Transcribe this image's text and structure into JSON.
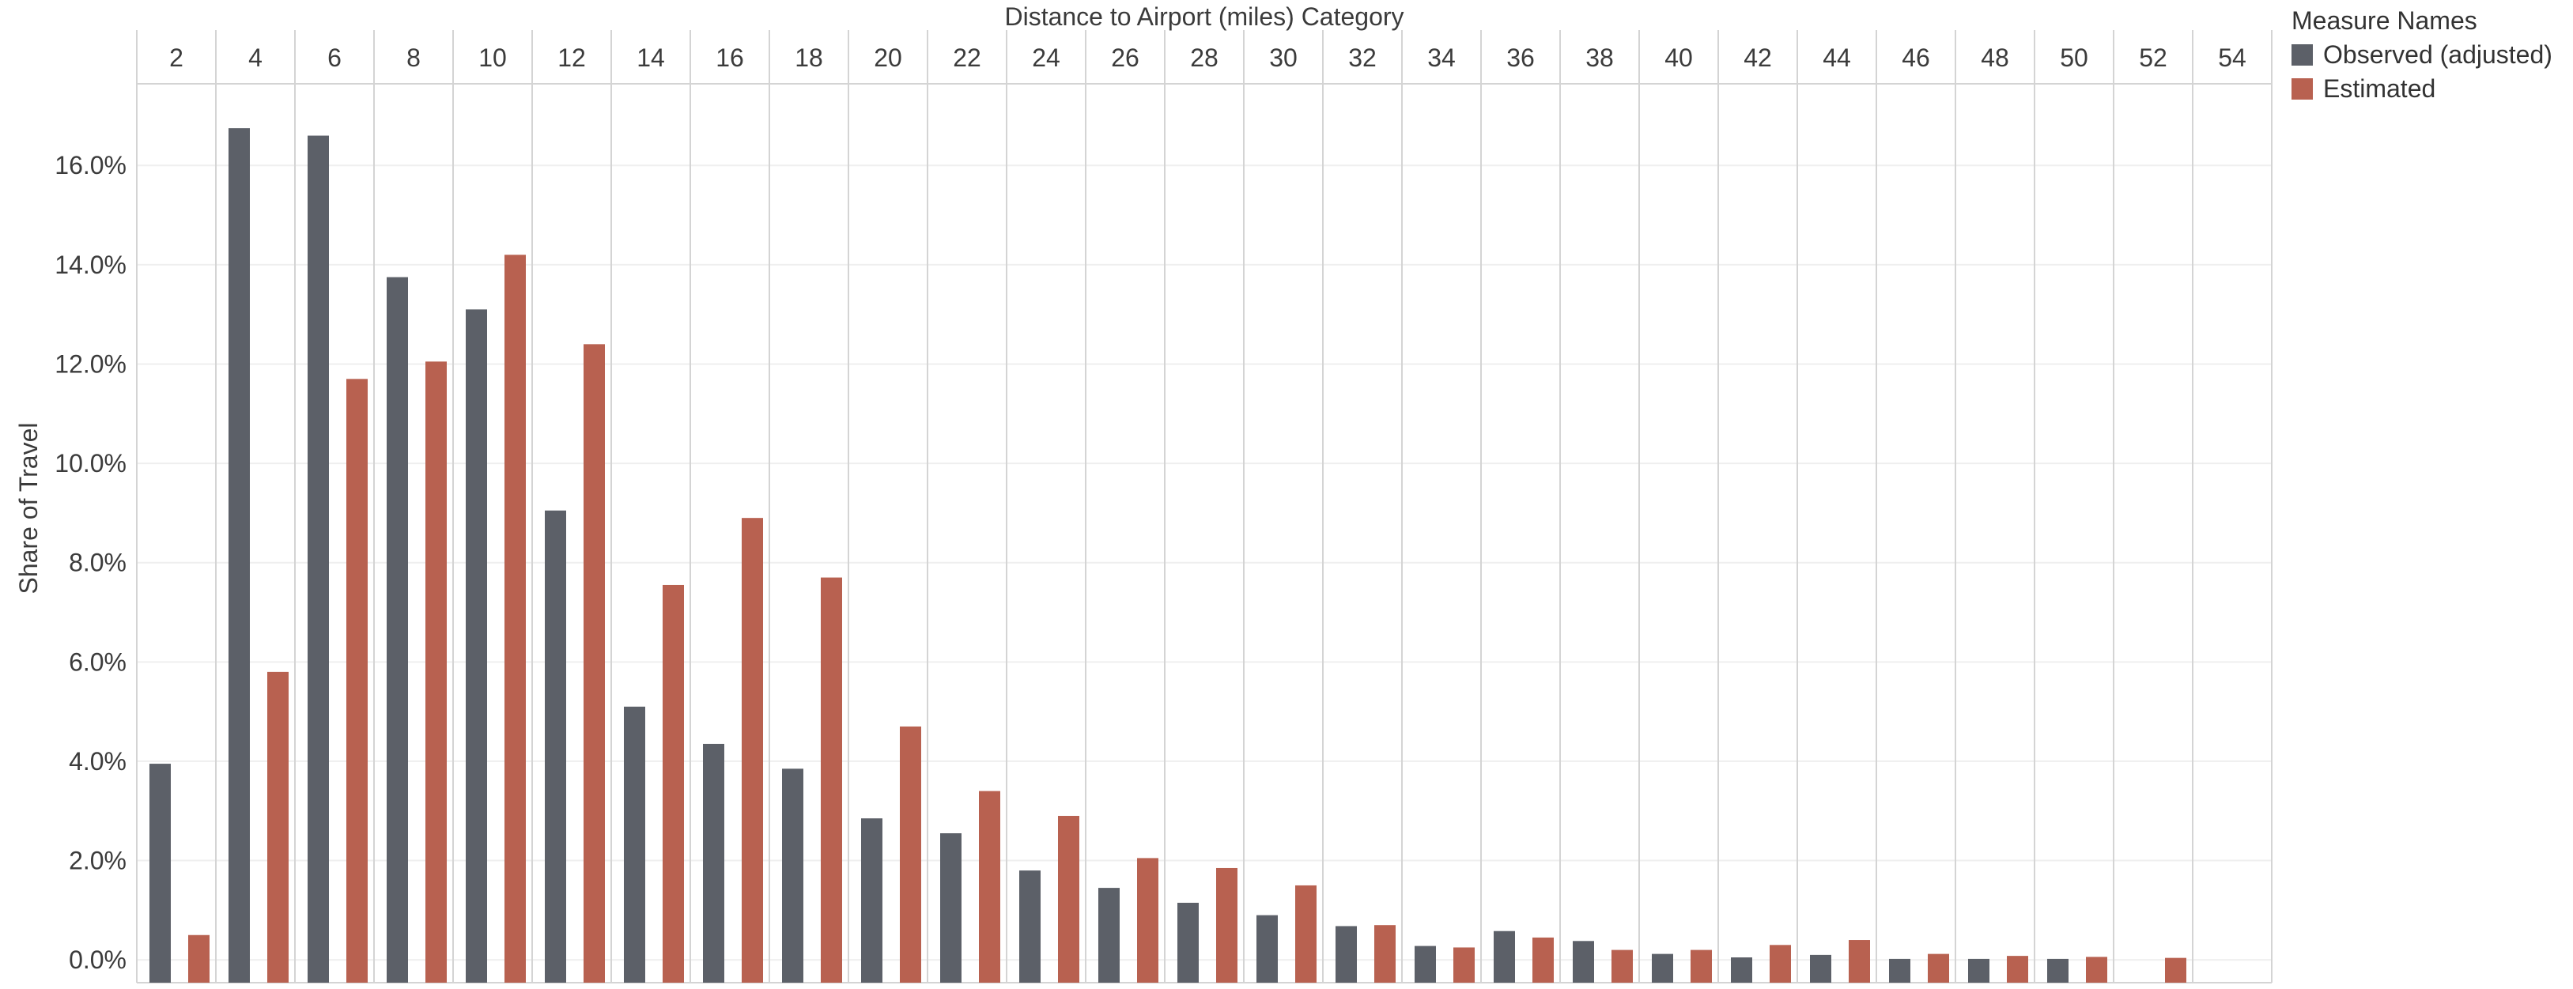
{
  "chart_data": {
    "type": "bar",
    "title": "Distance to Airport (miles) Category",
    "xlabel": "Distance to Airport (miles) Category",
    "ylabel": "Share of Travel",
    "categories": [
      "2",
      "4",
      "6",
      "8",
      "10",
      "12",
      "14",
      "16",
      "18",
      "20",
      "22",
      "24",
      "26",
      "28",
      "30",
      "32",
      "34",
      "36",
      "38",
      "40",
      "42",
      "44",
      "46",
      "48",
      "50",
      "52",
      "54"
    ],
    "series": [
      {
        "name": "Observed (adjusted)",
        "color": "#5c6068",
        "values": [
          3.95,
          16.75,
          16.6,
          13.75,
          13.1,
          9.05,
          5.1,
          4.35,
          3.85,
          2.85,
          2.55,
          1.8,
          1.45,
          1.15,
          0.9,
          0.68,
          0.28,
          0.58,
          0.38,
          0.12,
          0.05,
          0.1,
          0.02,
          0.02,
          0.02,
          0.0,
          0.0
        ]
      },
      {
        "name": "Estimated",
        "color": "#b86150",
        "values": [
          0.5,
          5.8,
          11.7,
          12.05,
          14.2,
          12.4,
          7.55,
          8.9,
          7.7,
          4.7,
          3.4,
          2.9,
          2.05,
          1.85,
          1.5,
          0.7,
          0.25,
          0.45,
          0.2,
          0.2,
          0.3,
          0.4,
          0.12,
          0.08,
          0.06,
          0.04,
          0.0
        ]
      }
    ],
    "ylim": [
      -0.3,
      16.8
    ],
    "yticks": [
      0,
      2,
      4,
      6,
      8,
      10,
      12,
      14,
      16
    ],
    "ytick_labels": [
      "0.0%",
      "2.0%",
      "4.0%",
      "6.0%",
      "8.0%",
      "10.0%",
      "12.0%",
      "14.0%",
      "16.0%"
    ],
    "grid": true,
    "legend": {
      "title": "Measure Names",
      "position": "top-right"
    },
    "colors": {
      "observed": "#5c6068",
      "estimated": "#b86150",
      "gridline": "#efefef",
      "column_divider": "#d4d4d4"
    }
  }
}
